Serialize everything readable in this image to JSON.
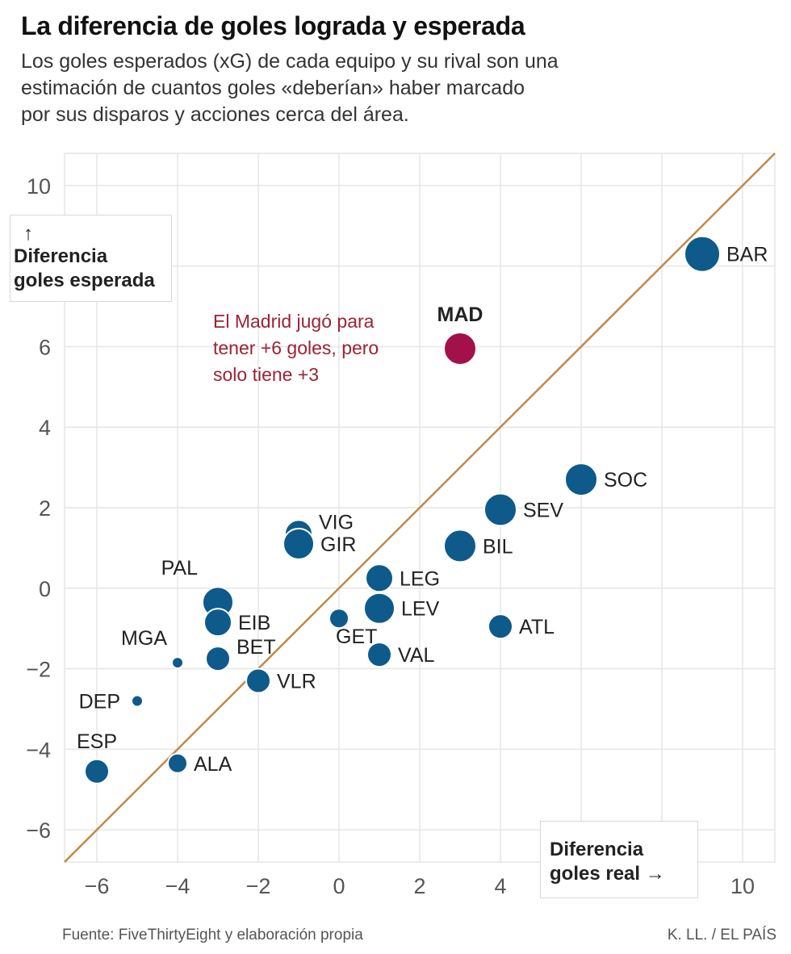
{
  "title": "La diferencia de goles lograda y esperada",
  "subtitle": [
    "Los goles esperados (xG) de cada equipo y su rival son una",
    "estimación de cuantos goles «deberían» haber marcado",
    "por sus disparos y acciones cerca del área."
  ],
  "source": "Fuente: FiveThirtyEight y elaboración propia",
  "credit": "K. LL. / EL PAÍS",
  "colors": {
    "team": "#0e5a8a",
    "highlight": "#a3114a",
    "diagonal": "#c08a45",
    "annotation": "#9b2335",
    "grid": "#e6e6e6"
  },
  "chart_data": {
    "type": "scatter",
    "xlabel": "Diferencia goles real →",
    "ylabel_arrow": "↑",
    "ylabel": [
      "Diferencia",
      "goles esperada"
    ],
    "xlim": [
      -6.8,
      10.8
    ],
    "ylim": [
      -6.8,
      10.8
    ],
    "xticks": [
      -6,
      -4,
      -2,
      0,
      2,
      4,
      10
    ],
    "xtick_labels": [
      "−6",
      "−4",
      "−2",
      "0",
      "2",
      "4",
      "10"
    ],
    "yticks": [
      -6,
      -4,
      -2,
      0,
      2,
      4,
      6,
      10
    ],
    "ytick_labels": [
      "−6",
      "−4",
      "−2",
      "0",
      "2",
      "4",
      "6",
      "10"
    ],
    "grid_x": [
      -6,
      -4,
      -2,
      0,
      2,
      4,
      6,
      8,
      10
    ],
    "grid_y": [
      -6,
      -4,
      -2,
      0,
      2,
      4,
      6,
      8,
      10
    ],
    "reference_line": "y = x",
    "points": [
      {
        "team": "BAR",
        "x": 9,
        "y": 8.3,
        "size": 22,
        "label_pos": "right"
      },
      {
        "team": "MAD",
        "x": 3,
        "y": 5.95,
        "size": 20,
        "label_pos": "top",
        "highlight": true
      },
      {
        "team": "SOC",
        "x": 6,
        "y": 2.7,
        "size": 20,
        "label_pos": "right"
      },
      {
        "team": "SEV",
        "x": 4,
        "y": 1.95,
        "size": 20,
        "label_pos": "right"
      },
      {
        "team": "BIL",
        "x": 3,
        "y": 1.05,
        "size": 20,
        "label_pos": "right"
      },
      {
        "team": "ATL",
        "x": 4,
        "y": -0.95,
        "size": 15,
        "label_pos": "right"
      },
      {
        "team": "VIG",
        "x": -1,
        "y": 1.35,
        "size": 17,
        "label_pos": "right-up"
      },
      {
        "team": "GIR",
        "x": -1,
        "y": 1.1,
        "size": 19,
        "label_pos": "right"
      },
      {
        "team": "LEG",
        "x": 1,
        "y": 0.25,
        "size": 17,
        "label_pos": "right"
      },
      {
        "team": "LEV",
        "x": 1,
        "y": -0.5,
        "size": 19,
        "label_pos": "right"
      },
      {
        "team": "GET",
        "x": 0,
        "y": -0.75,
        "size": 12,
        "label_pos": "bottom-right"
      },
      {
        "team": "VAL",
        "x": 1,
        "y": -1.65,
        "size": 15,
        "label_pos": "right"
      },
      {
        "team": "PAL",
        "x": -3,
        "y": -0.35,
        "size": 19,
        "label_pos": "top-left"
      },
      {
        "team": "EIB",
        "x": -3,
        "y": -0.85,
        "size": 17,
        "label_pos": "right"
      },
      {
        "team": "BET",
        "x": -3,
        "y": -1.75,
        "size": 15,
        "label_pos": "right-up"
      },
      {
        "team": "VLR",
        "x": -2,
        "y": -2.3,
        "size": 15,
        "label_pos": "right"
      },
      {
        "team": "MGA",
        "x": -4,
        "y": -1.85,
        "size": 7,
        "label_pos": "top-left"
      },
      {
        "team": "DEP",
        "x": -5,
        "y": -2.8,
        "size": 7,
        "label_pos": "left"
      },
      {
        "team": "ESP",
        "x": -6,
        "y": -4.55,
        "size": 15,
        "label_pos": "top"
      },
      {
        "team": "ALA",
        "x": -4,
        "y": -4.35,
        "size": 12,
        "label_pos": "right"
      }
    ],
    "annotation": [
      "El Madrid jugó para",
      "tener +6 goles, pero",
      "solo tiene +3"
    ]
  }
}
